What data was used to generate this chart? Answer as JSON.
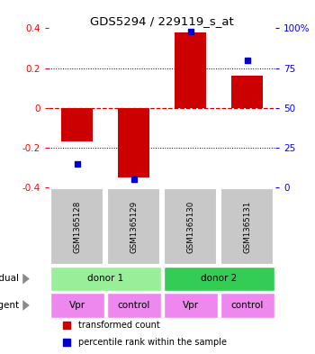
{
  "title": "GDS5294 / 229119_s_at",
  "samples": [
    "GSM1365128",
    "GSM1365129",
    "GSM1365130",
    "GSM1365131"
  ],
  "bar_values": [
    -0.17,
    -0.35,
    0.38,
    0.16
  ],
  "dot_pct": [
    15,
    5,
    98,
    80
  ],
  "ylim": [
    -0.4,
    0.4
  ],
  "left_yticks": [
    -0.4,
    -0.2,
    0.0,
    0.2,
    0.4
  ],
  "right_yticks": [
    0,
    25,
    50,
    75,
    100
  ],
  "right_yticklabels": [
    "0",
    "25",
    "50",
    "75",
    "100%"
  ],
  "bar_color": "#cc0000",
  "dot_color": "#0000cc",
  "zero_line_color": "#cc0000",
  "bg_color": "#ffffff",
  "sample_box_color": "#c8c8c8",
  "donor1_color": "#99ee99",
  "donor2_color": "#33cc55",
  "agent_color": "#ee88ee",
  "individual_groups": [
    [
      "donor 1",
      0,
      2
    ],
    [
      "donor 2",
      2,
      4
    ]
  ],
  "agents": [
    "Vpr",
    "control",
    "Vpr",
    "control"
  ],
  "legend_bar_label": "transformed count",
  "legend_dot_label": "percentile rank within the sample"
}
